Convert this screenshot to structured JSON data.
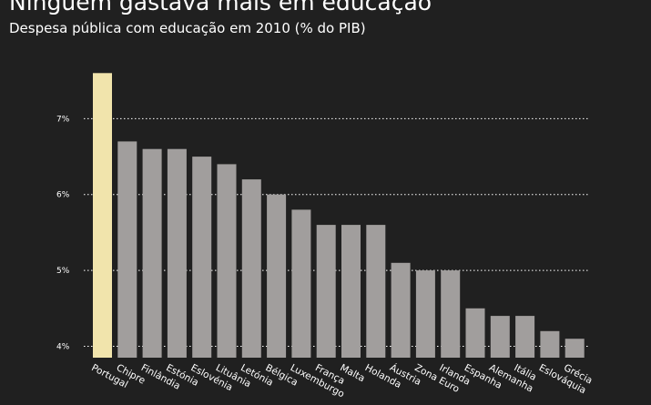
{
  "chart_data": {
    "type": "bar",
    "title": "Ninguém gastava mais em educação",
    "subtitle": "Despesa pública com educação em 2010 (% do PIB)",
    "xlabel": "",
    "ylabel": "",
    "categories": [
      "Portugal",
      "Chipre",
      "Finlândia",
      "Estónia",
      "Eslovénia",
      "Lituânia",
      "Letónia",
      "Bélgica",
      "Luxemburgo",
      "França",
      "Malta",
      "Holanda",
      "Áustria",
      "Zona Euro",
      "Irlanda",
      "Espanha",
      "Alemanha",
      "Itália",
      "Eslováquia",
      "Grécia"
    ],
    "values": [
      7.6,
      6.7,
      6.6,
      6.6,
      6.5,
      6.4,
      6.2,
      6.0,
      5.8,
      5.6,
      5.6,
      5.6,
      5.1,
      5.0,
      5.0,
      4.5,
      4.4,
      4.4,
      4.2,
      4.1
    ],
    "ylim": [
      3.85,
      7.7
    ],
    "yticks": [
      4,
      5,
      6,
      7
    ],
    "ytick_labels": [
      "4%",
      "5%",
      "6%",
      "7%"
    ],
    "grid": "horizontal dotted",
    "highlight_category": "Portugal",
    "colors": {
      "background": "#202020",
      "bar": "#a19e9d",
      "highlight": "#f1e4ac",
      "grid": "#ffffff",
      "text": "#ffffff"
    }
  }
}
